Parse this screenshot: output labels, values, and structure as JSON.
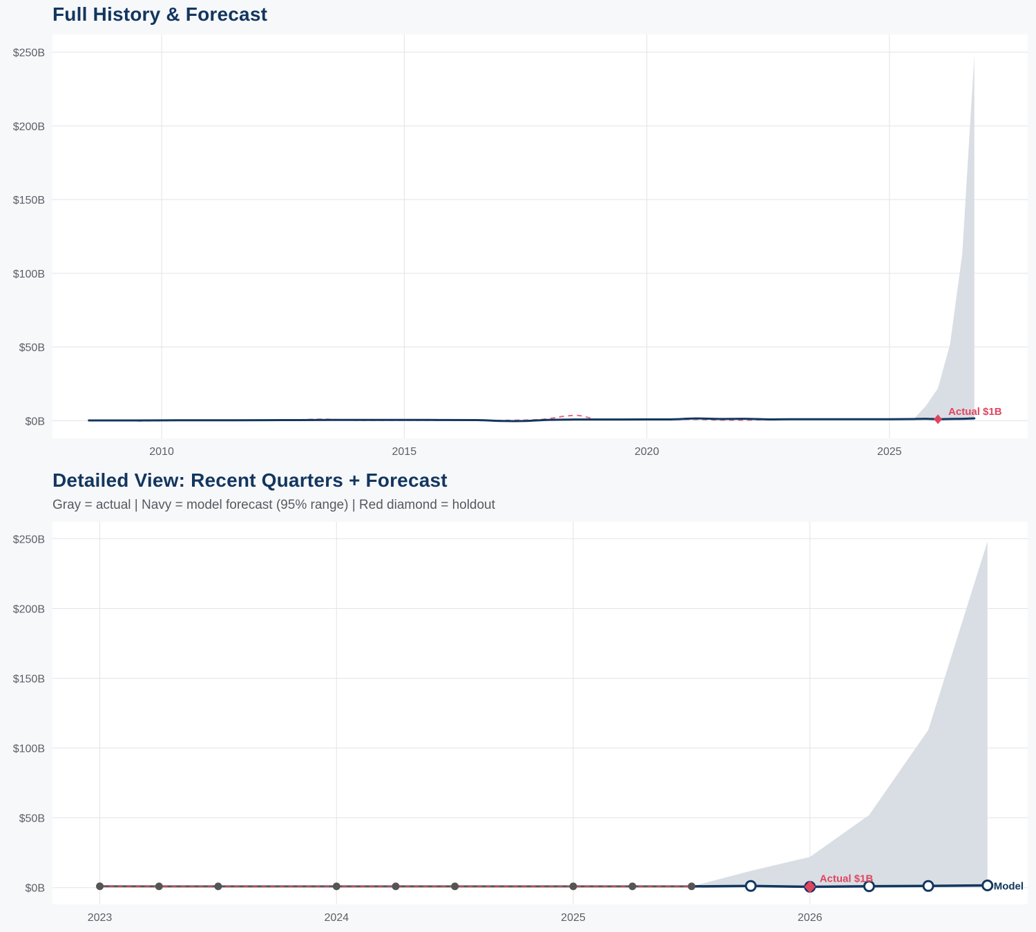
{
  "colors": {
    "navy": "#12365f",
    "red": "#e0455f",
    "gray": "#555555",
    "band": "#d9dee4",
    "grid": "#e1e3e6",
    "panel": "#ffffff"
  },
  "chart_data": [
    {
      "type": "line",
      "title": "Full History & Forecast",
      "x_unit": "year",
      "xlim": [
        2007.75,
        2027.85
      ],
      "ylim": [
        -12,
        262
      ],
      "yticks": [
        0,
        50,
        100,
        150,
        200,
        250
      ],
      "ytick_labels": [
        "$0B",
        "$50B",
        "$100B",
        "$150B",
        "$200B",
        "$250B"
      ],
      "xticks": [
        2010,
        2015,
        2020,
        2025
      ],
      "xtick_labels": [
        "2010",
        "2015",
        "2020",
        "2025"
      ],
      "grid": true,
      "series": [
        {
          "role": "actual",
          "style": "navy-solid",
          "x": [
            2008.5,
            2009.5,
            2010.5,
            2011.5,
            2012.5,
            2013.5,
            2014.5,
            2015.5,
            2016.5,
            2017.0,
            2017.5,
            2018.0,
            2018.5,
            2019.0,
            2020.0,
            2020.5,
            2021.0,
            2021.5,
            2022.0,
            2022.5,
            2023.0,
            2024.0,
            2025.0,
            2025.5
          ],
          "y": [
            0.2,
            0.2,
            0.3,
            0.3,
            0.4,
            0.5,
            0.5,
            0.5,
            0.4,
            -0.2,
            -0.2,
            0.6,
            0.8,
            0.8,
            0.9,
            0.9,
            1.5,
            1.2,
            1.3,
            0.9,
            1.0,
            1.0,
            1.0,
            1.1
          ]
        },
        {
          "role": "fitted",
          "style": "red-dashed",
          "x": [
            2009.5,
            2010.5,
            2011.5,
            2012.5,
            2013.3,
            2014.0,
            2015.0,
            2016.0,
            2017.0,
            2017.8,
            2018.3,
            2018.6,
            2019.0,
            2019.5,
            2020.5,
            2021.0,
            2021.5,
            2022.0,
            2022.5,
            2023.0,
            2024.0,
            2025.0,
            2025.5
          ],
          "y": [
            -0.2,
            0.2,
            0.3,
            0.3,
            1.0,
            0.3,
            0.3,
            0.3,
            0.2,
            0.8,
            3.0,
            3.5,
            0.8,
            0.8,
            0.8,
            0.9,
            0.5,
            0.4,
            0.8,
            0.9,
            0.9,
            0.9,
            0.9
          ]
        },
        {
          "role": "forecast",
          "style": "navy-solid",
          "x": [
            2025.5,
            2025.75,
            2026.0,
            2026.25,
            2026.5,
            2026.75
          ],
          "y": [
            1.1,
            1.3,
            1.0,
            1.2,
            1.3,
            1.6
          ]
        }
      ],
      "band": {
        "x": [
          2025.5,
          2025.75,
          2026.0,
          2026.25,
          2026.5,
          2026.75
        ],
        "lower": [
          0.5,
          0.3,
          0.2,
          0.3,
          0.3,
          0.3
        ],
        "upper": [
          1.1,
          10.0,
          22.0,
          52.0,
          113.0,
          248.0
        ]
      },
      "holdout": {
        "x": 2026.0,
        "y": 1.0,
        "label": "Actual $1B"
      }
    },
    {
      "type": "line",
      "title": "Detailed View: Recent Quarters + Forecast",
      "subtitle": "Gray = actual  |  Navy = model forecast (95% range)  |  Red diamond = holdout",
      "x_unit": "year",
      "xlim": [
        2022.8,
        2026.92
      ],
      "ylim": [
        -12,
        262
      ],
      "yticks": [
        0,
        50,
        100,
        150,
        200,
        250
      ],
      "ytick_labels": [
        "$0B",
        "$50B",
        "$100B",
        "$150B",
        "$200B",
        "$250B"
      ],
      "xticks": [
        2023,
        2024,
        2025,
        2026
      ],
      "xtick_labels": [
        "2023",
        "2024",
        "2025",
        "2026"
      ],
      "grid": true,
      "actual": {
        "x": [
          2023.0,
          2023.25,
          2023.5,
          2024.0,
          2024.25,
          2024.5,
          2025.0,
          2025.25,
          2025.5
        ],
        "y": [
          1.0,
          0.9,
          0.9,
          0.9,
          0.9,
          0.9,
          0.9,
          0.9,
          0.9
        ]
      },
      "fitted": {
        "x": [
          2023.0,
          2023.25,
          2023.5,
          2024.0,
          2024.25,
          2024.5,
          2025.0,
          2025.25,
          2025.5
        ],
        "y": [
          0.9,
          0.9,
          0.9,
          0.9,
          0.9,
          0.9,
          0.9,
          0.9,
          0.9
        ]
      },
      "forecast": {
        "x": [
          2025.5,
          2025.75,
          2026.0,
          2026.25,
          2026.5,
          2026.75
        ],
        "y": [
          0.9,
          1.2,
          0.6,
          1.0,
          1.2,
          1.6
        ]
      },
      "band": {
        "x": [
          2025.5,
          2025.75,
          2026.0,
          2026.25,
          2026.5,
          2026.75
        ],
        "lower": [
          0.9,
          0.3,
          0.2,
          0.3,
          0.3,
          0.3
        ],
        "upper": [
          0.9,
          12.0,
          22.0,
          52.0,
          113.0,
          248.0
        ]
      },
      "holdout": {
        "x": 2026.0,
        "y": 0.6,
        "label": "Actual $1B"
      },
      "end_label": "Model"
    }
  ]
}
